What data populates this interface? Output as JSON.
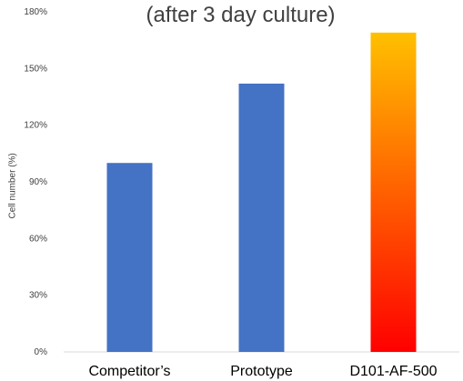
{
  "chart_data": {
    "type": "bar",
    "title": "(after 3 day culture)",
    "ylabel": "Cell number (%)",
    "xlabel": "",
    "categories": [
      "Competitor’s",
      "Prototype",
      "D101-AF-500"
    ],
    "values": [
      100,
      142,
      169
    ],
    "unit": "%",
    "ylim": [
      0,
      180
    ],
    "yticks": [
      0,
      30,
      60,
      90,
      120,
      150,
      180
    ],
    "ytick_labels": [
      "0%",
      "30%",
      "60%",
      "90%",
      "120%",
      "150%",
      "180%"
    ],
    "grid": false,
    "colors": {
      "bar": "#4472c4",
      "highlight_gradient_top": "#ffc000",
      "highlight_gradient_bottom": "#ff0000",
      "axis": "#d9d9d9",
      "text": "#404040"
    },
    "highlight_index": 2
  }
}
